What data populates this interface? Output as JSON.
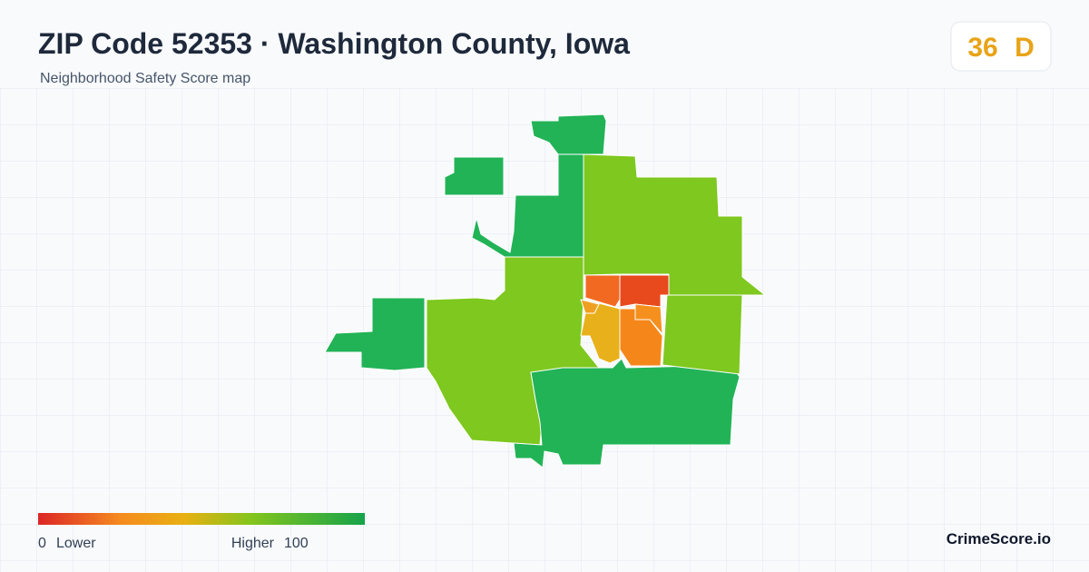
{
  "header": {
    "title": "ZIP Code 52353 · Washington County, Iowa",
    "subtitle": "Neighborhood Safety Score map"
  },
  "badge": {
    "score": "36",
    "grade": "D"
  },
  "legend": {
    "min": "0",
    "min_label": "Lower",
    "max_label": "Higher",
    "max": "100"
  },
  "brand": "CrimeScore.io"
}
